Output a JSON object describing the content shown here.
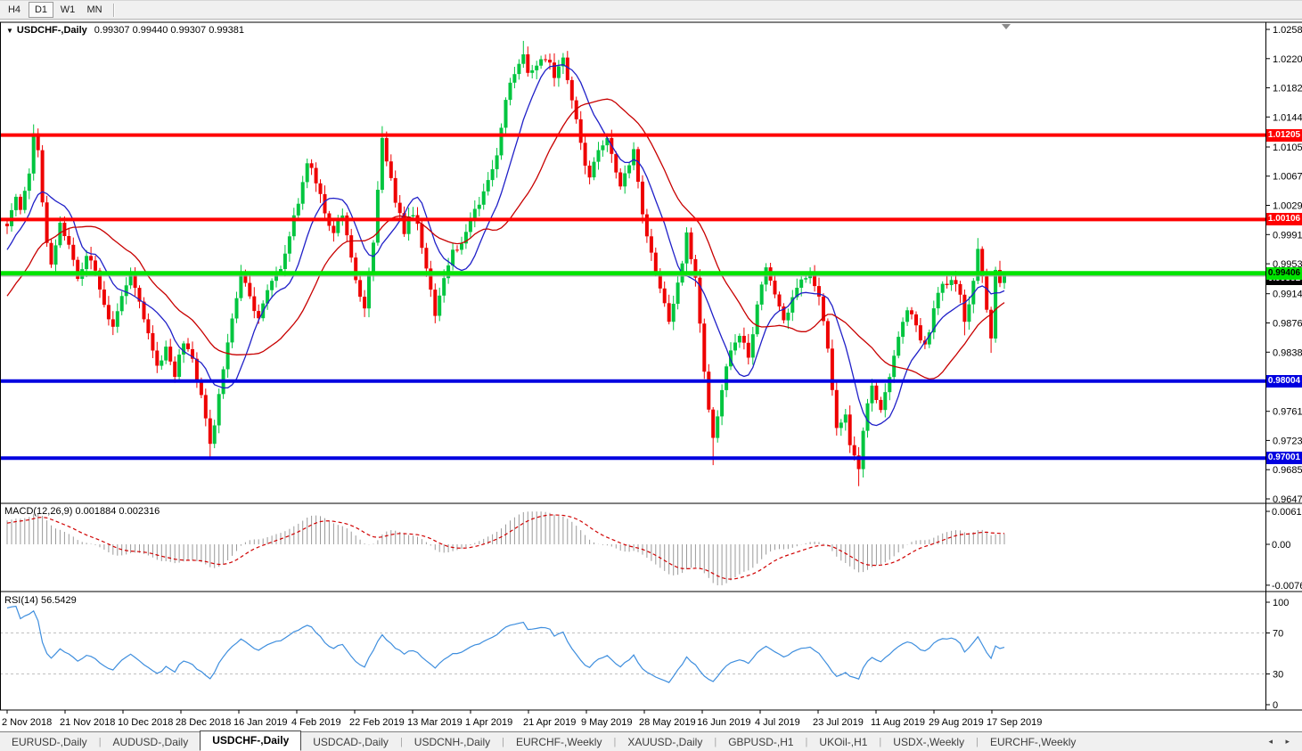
{
  "toolbar": {
    "timeframes": [
      {
        "label": "H4",
        "active": false
      },
      {
        "label": "D1",
        "active": true
      },
      {
        "label": "W1",
        "active": false
      },
      {
        "label": "MN",
        "active": false
      }
    ]
  },
  "chart": {
    "collapse_icon": "▼",
    "symbol_label": "USDCHF-,Daily",
    "ohlc_label": "0.99307 0.99440 0.99307 0.99381"
  },
  "chart_data": {
    "type": "candlestick",
    "title": "USDCHF-,Daily",
    "ohlc_current": {
      "open": "0.99307",
      "high": "0.99440",
      "low": "0.99307",
      "close": "0.99381"
    },
    "price_axis_ticks": [
      "1.02580",
      "1.02200",
      "1.01820",
      "1.01440",
      "1.01050",
      "1.00670",
      "1.00290",
      "0.99910",
      "0.99530",
      "0.99140",
      "0.98760",
      "0.98380",
      "0.97610",
      "0.97230",
      "0.96850",
      "0.96470"
    ],
    "x_labels": [
      "2 Nov 2018",
      "21 Nov 2018",
      "10 Dec 2018",
      "28 Dec 2018",
      "16 Jan 2019",
      "4 Feb 2019",
      "22 Feb 2019",
      "13 Mar 2019",
      "1 Apr 2019",
      "21 Apr 2019",
      "9 May 2019",
      "28 May 2019",
      "16 Jun 2019",
      "4 Jul 2019",
      "23 Jul 2019",
      "11 Aug 2019",
      "29 Aug 2019",
      "17 Sep 2019"
    ],
    "hlines": [
      {
        "value": 1.01205,
        "label": "1.01205",
        "color": "#FF0000",
        "text": "#FFFFFF",
        "thickness": 4,
        "role": "resistance"
      },
      {
        "value": 1.00106,
        "label": "1.00106",
        "color": "#FF0000",
        "text": "#FFFFFF",
        "thickness": 4,
        "role": "resistance"
      },
      {
        "value": 0.99406,
        "label": "0.99406",
        "color": "#00E400",
        "text": "#000000",
        "thickness": 5,
        "role": "pivot"
      },
      {
        "value": 0.98004,
        "label": "0.98004",
        "color": "#0000E0",
        "text": "#FFFFFF",
        "thickness": 4,
        "role": "support"
      },
      {
        "value": 0.97001,
        "label": "0.97001",
        "color": "#0000E0",
        "text": "#FFFFFF",
        "thickness": 4,
        "role": "support"
      }
    ],
    "current_price": {
      "value": 0.99381,
      "label": "0.99381"
    },
    "bars_visible": 227,
    "history_bars": 40,
    "history_start": 0.978,
    "history_rise": 0.0228,
    "anchors": [
      [
        0,
        1.0008
      ],
      [
        2,
        1.0042
      ],
      [
        3,
        1.0018
      ],
      [
        5,
        1.0065
      ],
      [
        6,
        1.0122
      ],
      [
        7,
        1.0095
      ],
      [
        9,
        0.9975
      ],
      [
        10,
        0.9958
      ],
      [
        12,
        1.0002
      ],
      [
        14,
        0.998
      ],
      [
        16,
        0.9938
      ],
      [
        18,
        0.9965
      ],
      [
        20,
        0.9942
      ],
      [
        22,
        0.9896
      ],
      [
        24,
        0.987
      ],
      [
        26,
        0.991
      ],
      [
        28,
        0.9943
      ],
      [
        30,
        0.9905
      ],
      [
        32,
        0.9868
      ],
      [
        34,
        0.9818
      ],
      [
        36,
        0.9845
      ],
      [
        38,
        0.981
      ],
      [
        40,
        0.9852
      ],
      [
        42,
        0.983
      ],
      [
        44,
        0.978
      ],
      [
        46,
        0.9722
      ],
      [
        47,
        0.974
      ],
      [
        49,
        0.982
      ],
      [
        51,
        0.988
      ],
      [
        53,
        0.9944
      ],
      [
        55,
        0.9905
      ],
      [
        57,
        0.988
      ],
      [
        59,
        0.9918
      ],
      [
        62,
        0.9948
      ],
      [
        64,
        0.999
      ],
      [
        66,
        1.0032
      ],
      [
        68,
        1.0088
      ],
      [
        70,
        1.0062
      ],
      [
        72,
        1.0015
      ],
      [
        74,
        0.9992
      ],
      [
        76,
        1.0018
      ],
      [
        78,
        0.996
      ],
      [
        80,
        0.9912
      ],
      [
        81,
        0.989
      ],
      [
        83,
        0.9975
      ],
      [
        85,
        1.0118
      ],
      [
        86,
        1.009
      ],
      [
        88,
        1.0035
      ],
      [
        90,
        0.9998
      ],
      [
        92,
        1.0022
      ],
      [
        94,
        0.998
      ],
      [
        96,
        0.992
      ],
      [
        97,
        0.9885
      ],
      [
        99,
        0.993
      ],
      [
        101,
        0.9965
      ],
      [
        103,
        0.9985
      ],
      [
        105,
        1.0012
      ],
      [
        107,
        1.0028
      ],
      [
        109,
        1.0065
      ],
      [
        111,
        1.0098
      ],
      [
        113,
        1.016
      ],
      [
        115,
        1.0205
      ],
      [
        117,
        1.0228
      ],
      [
        118,
        1.0195
      ],
      [
        120,
        1.0212
      ],
      [
        122,
        1.022
      ],
      [
        124,
        1.02
      ],
      [
        126,
        1.0218
      ],
      [
        128,
        1.0165
      ],
      [
        130,
        1.0105
      ],
      [
        132,
        1.0062
      ],
      [
        134,
        1.0098
      ],
      [
        136,
        1.0122
      ],
      [
        137,
        1.0095
      ],
      [
        139,
        1.0052
      ],
      [
        141,
        1.0082
      ],
      [
        142,
        1.01
      ],
      [
        144,
        1.0018
      ],
      [
        146,
        0.9965
      ],
      [
        148,
        0.9925
      ],
      [
        150,
        0.9878
      ],
      [
        152,
        0.9925
      ],
      [
        154,
        0.9988
      ],
      [
        156,
        0.9938
      ],
      [
        157,
        0.988
      ],
      [
        159,
        0.9758
      ],
      [
        160,
        0.9722
      ],
      [
        162,
        0.9795
      ],
      [
        164,
        0.9845
      ],
      [
        166,
        0.9858
      ],
      [
        168,
        0.9832
      ],
      [
        170,
        0.9898
      ],
      [
        172,
        0.9942
      ],
      [
        174,
        0.9912
      ],
      [
        176,
        0.9878
      ],
      [
        178,
        0.9905
      ],
      [
        180,
        0.993
      ],
      [
        182,
        0.9943
      ],
      [
        184,
        0.9908
      ],
      [
        186,
        0.9848
      ],
      [
        188,
        0.9735
      ],
      [
        190,
        0.9758
      ],
      [
        191,
        0.9712
      ],
      [
        193,
        0.9682
      ],
      [
        194,
        0.9742
      ],
      [
        196,
        0.9792
      ],
      [
        198,
        0.9762
      ],
      [
        200,
        0.9802
      ],
      [
        202,
        0.9852
      ],
      [
        204,
        0.9895
      ],
      [
        206,
        0.9868
      ],
      [
        208,
        0.9842
      ],
      [
        210,
        0.9895
      ],
      [
        212,
        0.9925
      ],
      [
        214,
        0.9935
      ],
      [
        216,
        0.9908
      ],
      [
        217,
        0.9872
      ],
      [
        219,
        0.9932
      ],
      [
        220,
        0.9972
      ],
      [
        221,
        0.9938
      ],
      [
        222,
        0.9895
      ],
      [
        223,
        0.9858
      ],
      [
        224,
        0.9945
      ],
      [
        225,
        0.9928
      ],
      [
        226,
        0.9938
      ]
    ],
    "wick_boosts": {
      "6": 0.0006,
      "46": -0.0008,
      "85": 0.0006,
      "117": 0.0008,
      "160": -0.0026,
      "193": -0.0012,
      "217": -0.001,
      "220": 0.0009,
      "223": -0.0012
    },
    "indicators": {
      "ma_fast_period": 10,
      "ma_slow_period": 25,
      "macd": {
        "label": "MACD(12,26,9)",
        "values_label": "0.001884 0.002316",
        "fast": 12,
        "slow": 26,
        "signal": 9,
        "axis_ticks": [
          "0.00613",
          "0.00",
          "-0.007612"
        ],
        "axis_values": [
          0.00613,
          0,
          -0.007612
        ]
      },
      "rsi": {
        "label": "RSI(14)",
        "value_label": "56.5429",
        "period": 14,
        "axis_ticks": [
          "100",
          "70",
          "30",
          "0"
        ],
        "axis_values": [
          100,
          70,
          30,
          0
        ],
        "levels": [
          70,
          30
        ]
      }
    },
    "colors": {
      "bull": "#00C53F",
      "bear": "#EE0000",
      "ma_fast": "#2020C8",
      "ma_slow": "#C80000",
      "macd_hist": "#9A9A9A",
      "macd_signal": "#D00000",
      "rsi": "#3E8EDE",
      "rsi_level": "#C0C0C0",
      "bid_line": "#9E9E9E",
      "current_label_bg": "#000000"
    }
  },
  "tabs": {
    "items": [
      {
        "label": "EURUSD-,Daily",
        "active": false
      },
      {
        "label": "AUDUSD-,Daily",
        "active": false
      },
      {
        "label": "USDCHF-,Daily",
        "active": true
      },
      {
        "label": "USDCAD-,Daily",
        "active": false
      },
      {
        "label": "USDCNH-,Daily",
        "active": false
      },
      {
        "label": "EURCHF-,Weekly",
        "active": false
      },
      {
        "label": "XAUUSD-,Daily",
        "active": false
      },
      {
        "label": "GBPUSD-,H1",
        "active": false
      },
      {
        "label": "UKOil-,H1",
        "active": false
      },
      {
        "label": "USDX-,Weekly",
        "active": false
      },
      {
        "label": "EURCHF-,Weekly",
        "active": false
      }
    ],
    "nav_left": "◂",
    "nav_right": "▸"
  }
}
